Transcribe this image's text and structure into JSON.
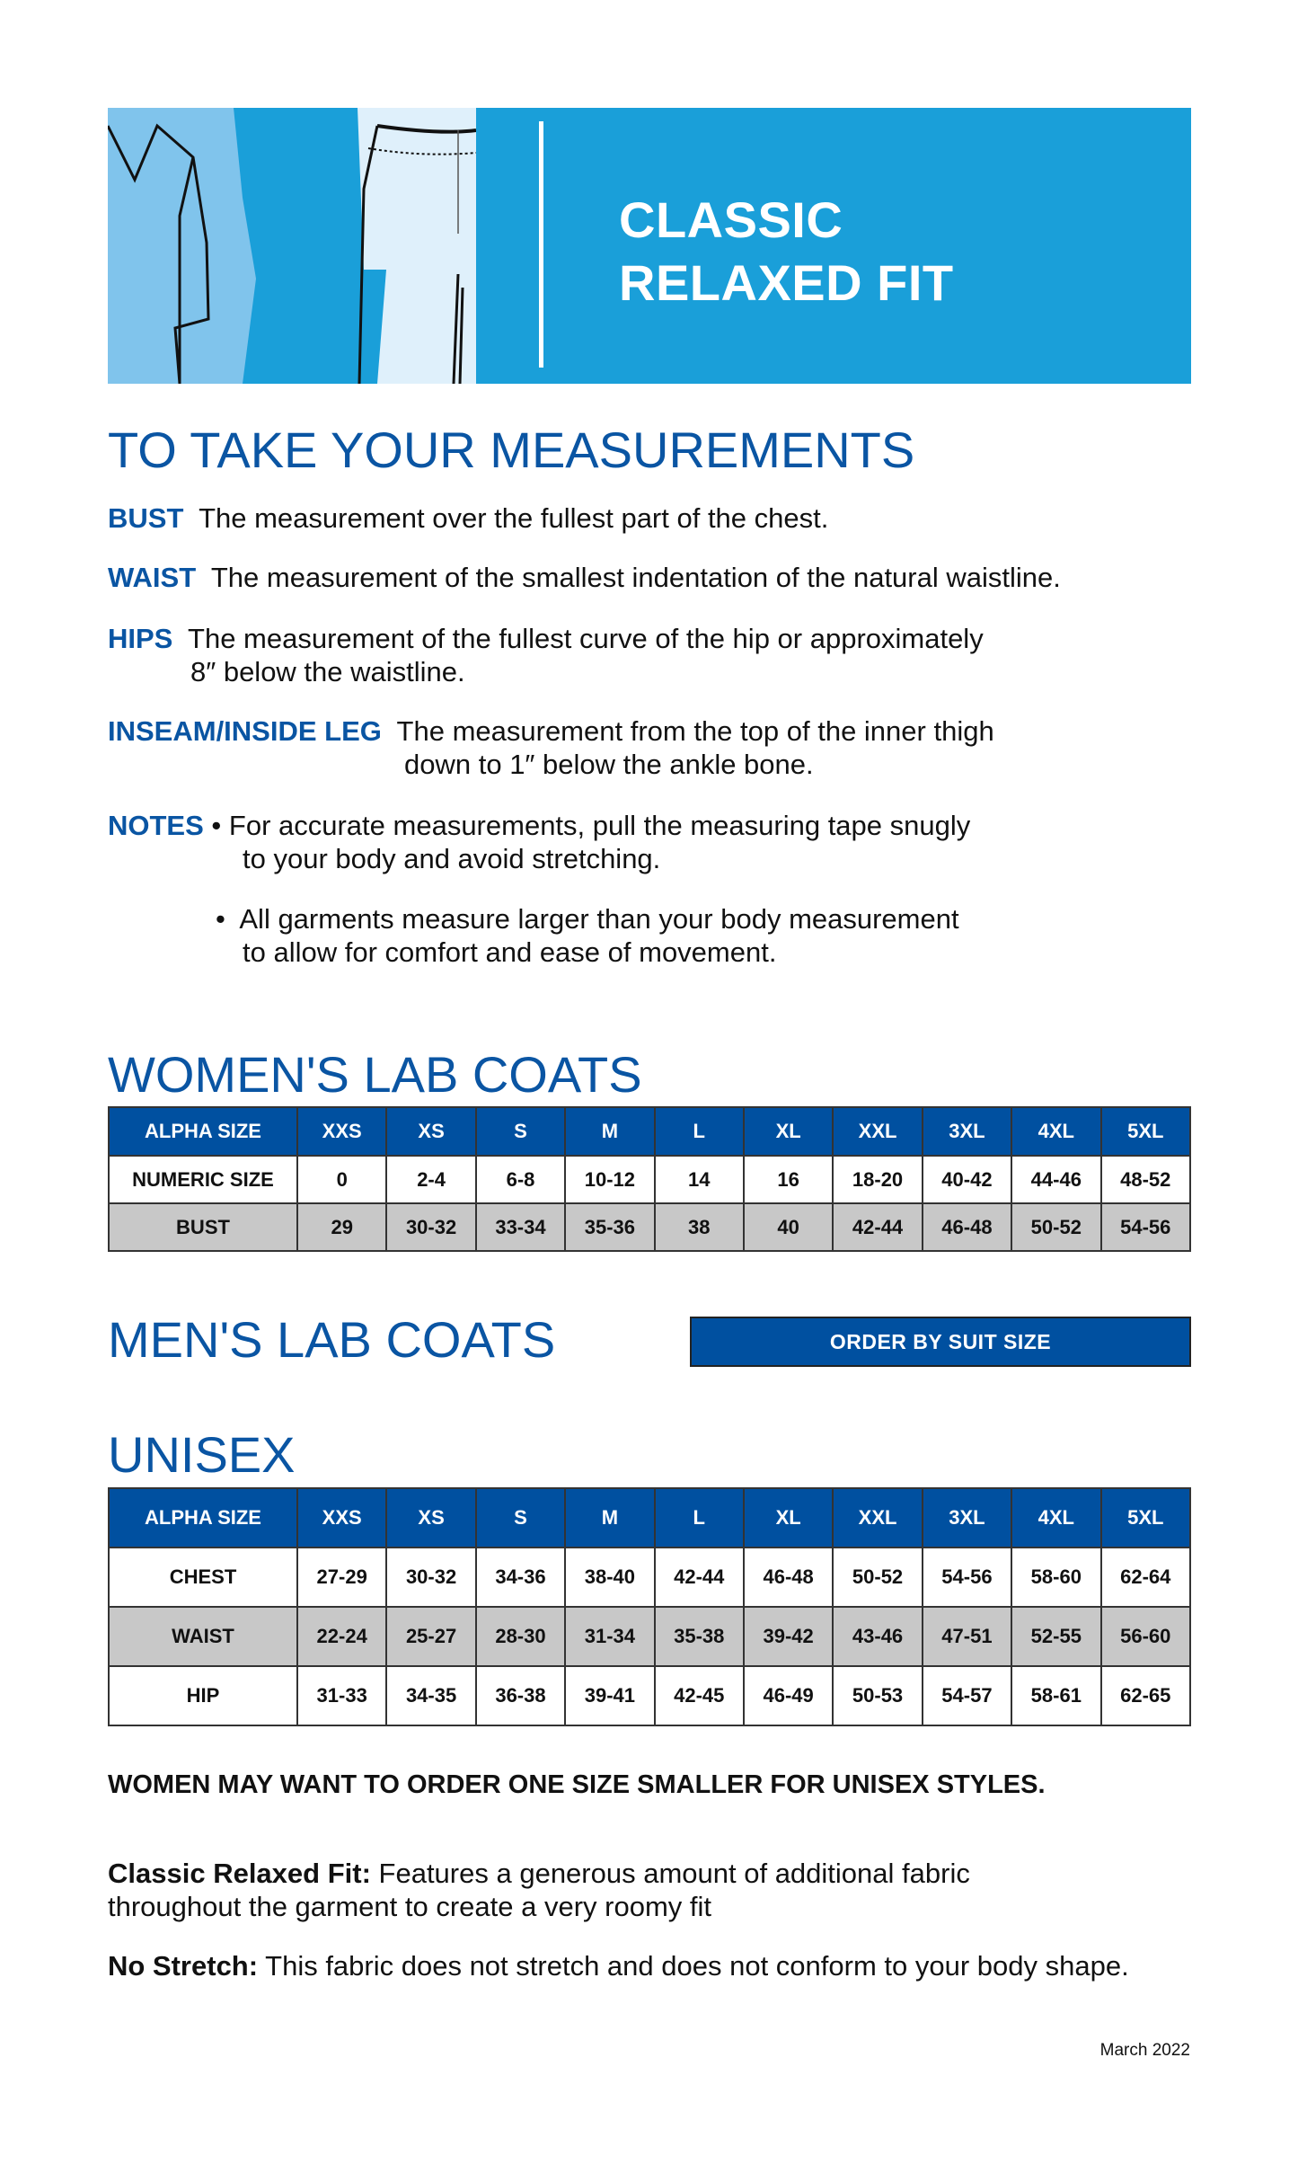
{
  "banner": {
    "title_line1": "CLASSIC",
    "title_line2": "RELAXED FIT"
  },
  "measurements": {
    "heading": "TO TAKE YOUR MEASUREMENTS",
    "bust": {
      "term": "BUST",
      "text": "The measurement over the fullest part of the chest."
    },
    "waist": {
      "term": "WAIST",
      "text": "The measurement of the smallest indentation of the natural waistline."
    },
    "hips": {
      "term": "HIPS",
      "text1": "The measurement of the fullest curve of the hip or approximately",
      "text2": "8″ below the waistline."
    },
    "inseam": {
      "term": "INSEAM/INSIDE LEG",
      "text1": "The measurement from the top of the inner thigh",
      "text2": "down to 1″ below the ankle bone."
    },
    "notes": {
      "term": "NOTES",
      "items": [
        {
          "line1": "For accurate measurements, pull the measuring tape snugly",
          "line2": "to your body and avoid stretching."
        },
        {
          "line1": "All garments measure larger than your body measurement",
          "line2": "to allow for comfort and ease of movement."
        }
      ]
    }
  },
  "womens": {
    "heading": "WOMEN'S LAB COATS",
    "header": [
      "ALPHA SIZE",
      "XXS",
      "XS",
      "S",
      "M",
      "L",
      "XL",
      "XXL",
      "3XL",
      "4XL",
      "5XL"
    ],
    "rows": [
      [
        "NUMERIC SIZE",
        "0",
        "2-4",
        "6-8",
        "10-12",
        "14",
        "16",
        "18-20",
        "40-42",
        "44-46",
        "48-52"
      ],
      [
        "BUST",
        "29",
        "30-32",
        "33-34",
        "35-36",
        "38",
        "40",
        "42-44",
        "46-48",
        "50-52",
        "54-56"
      ]
    ]
  },
  "mens": {
    "heading": "MEN'S LAB COATS",
    "button": "ORDER BY SUIT SIZE"
  },
  "unisex": {
    "heading": "UNISEX",
    "header": [
      "ALPHA SIZE",
      "XXS",
      "XS",
      "S",
      "M",
      "L",
      "XL",
      "XXL",
      "3XL",
      "4XL",
      "5XL"
    ],
    "rows": [
      [
        "CHEST",
        "27-29",
        "30-32",
        "34-36",
        "38-40",
        "42-44",
        "46-48",
        "50-52",
        "54-56",
        "58-60",
        "62-64"
      ],
      [
        "WAIST",
        "22-24",
        "25-27",
        "28-30",
        "31-34",
        "35-38",
        "39-42",
        "43-46",
        "47-51",
        "52-55",
        "56-60"
      ],
      [
        "HIP",
        "31-33",
        "34-35",
        "36-38",
        "39-41",
        "42-45",
        "46-49",
        "50-53",
        "54-57",
        "58-61",
        "62-65"
      ]
    ]
  },
  "footer": {
    "warning": "WOMEN MAY WANT TO ORDER ONE SIZE SMALLER FOR UNISEX STYLES.",
    "classic_term": "Classic Relaxed Fit:",
    "classic_text1": "Features a generous amount of additional fabric",
    "classic_text2": "throughout the garment to create a very roomy fit",
    "stretch_term": "No Stretch:",
    "stretch_text": "This fabric does not stretch and does not conform to your body shape.",
    "date": "March 2022"
  },
  "colors": {
    "banner": "#1a9fd9",
    "brand_blue": "#0050a0",
    "heading_blue": "#0a55a3",
    "gray_row": "#c8c8c8"
  }
}
